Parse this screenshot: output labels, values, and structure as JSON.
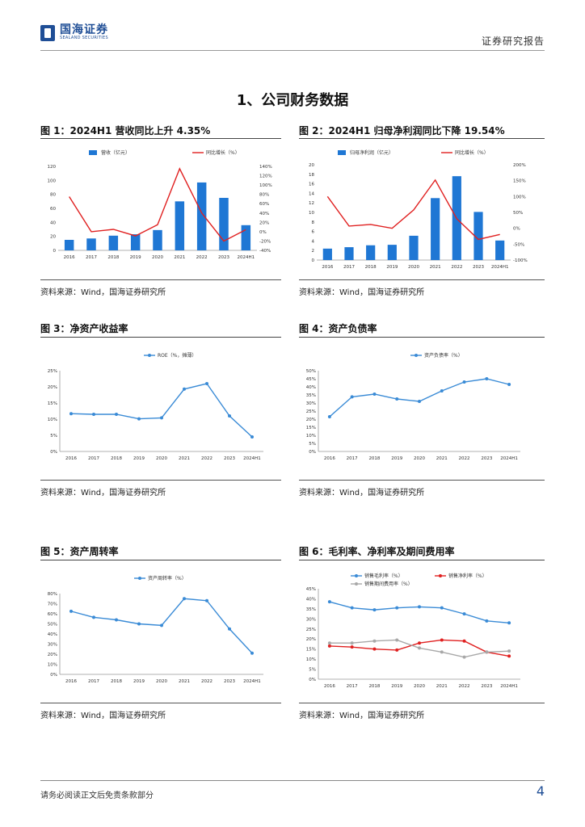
{
  "header": {
    "logo_cn": "国海证券",
    "logo_en": "SEALAND SECURITIES",
    "report_type": "证券研究报告"
  },
  "section_title": "1、公司财务数据",
  "figures": [
    {
      "title": "图 1：2024H1 营收同比上升 4.35%",
      "source": "资料来源：Wind，国海证券研究所"
    },
    {
      "title": "图 2：2024H1 归母净利润同比下降 19.54%",
      "source": "资料来源：Wind，国海证券研究所"
    },
    {
      "title": "图 3：净资产收益率",
      "source": "资料来源：Wind，国海证券研究所"
    },
    {
      "title": "图 4：资产负债率",
      "source": "资料来源：Wind，国海证券研究所"
    },
    {
      "title": "图 5：资产周转率",
      "source": "资料来源：Wind，国海证券研究所"
    },
    {
      "title": "图 6：毛利率、净利率及期间费用率",
      "source": "资料来源：Wind，国海证券研究所"
    }
  ],
  "footer": {
    "disclaimer": "请务必阅读正文后免责条款部分",
    "page": "4"
  },
  "chart_data": [
    {
      "type": "bar",
      "categories": [
        "2016",
        "2017",
        "2018",
        "2019",
        "2020",
        "2021",
        "2022",
        "2023",
        "2024H1"
      ],
      "series": [
        {
          "name": "营收（亿元）",
          "type": "bar",
          "axis": "left",
          "color": "#1f77d4",
          "values": [
            15,
            17,
            21,
            23,
            29,
            70,
            97,
            75,
            36
          ]
        },
        {
          "name": "同比增长（%）",
          "type": "line",
          "axis": "right",
          "color": "#e02020",
          "values": [
            75,
            0,
            5,
            -9,
            15,
            135,
            40,
            -20,
            4.35
          ]
        }
      ],
      "left_ticks": [
        "0",
        "20",
        "40",
        "60",
        "80",
        "100",
        "120"
      ],
      "right_ticks": [
        "-40%",
        "-20%",
        "0%",
        "20%",
        "40%",
        "60%",
        "80%",
        "100%",
        "120%",
        "140%"
      ],
      "ylim": [
        0,
        120
      ],
      "y2lim": [
        -40,
        140
      ]
    },
    {
      "type": "bar",
      "categories": [
        "2016",
        "2017",
        "2018",
        "2019",
        "2020",
        "2021",
        "2022",
        "2023",
        "2024H1"
      ],
      "series": [
        {
          "name": "归母净利润（亿元）",
          "type": "bar",
          "axis": "left",
          "color": "#1f77d4",
          "values": [
            2.4,
            2.7,
            3.1,
            3.2,
            5.1,
            13,
            17.6,
            10.1,
            4.1
          ]
        },
        {
          "name": "同比增长（%）",
          "type": "line",
          "axis": "right",
          "color": "#e02020",
          "values": [
            100,
            7,
            12,
            0,
            58,
            152,
            30,
            -35,
            -19.54
          ]
        }
      ],
      "left_ticks": [
        "0",
        "2",
        "4",
        "6",
        "8",
        "10",
        "12",
        "14",
        "16",
        "18",
        "20"
      ],
      "right_ticks": [
        "-100%",
        "-50%",
        "0%",
        "50%",
        "100%",
        "150%",
        "200%"
      ],
      "ylim": [
        0,
        20
      ],
      "y2lim": [
        -100,
        200
      ]
    },
    {
      "type": "line",
      "categories": [
        "2016",
        "2017",
        "2018",
        "2019",
        "2020",
        "2021",
        "2022",
        "2023",
        "2024H1"
      ],
      "series": [
        {
          "name": "ROE（%，摊薄）",
          "color": "#3a8bd6",
          "values": [
            11.7,
            11.5,
            11.5,
            10.1,
            10.4,
            19.3,
            21,
            11,
            4.5
          ]
        }
      ],
      "y_ticks": [
        "0%",
        "5%",
        "10%",
        "15%",
        "20%",
        "25%"
      ],
      "ylim": [
        0,
        25
      ]
    },
    {
      "type": "line",
      "categories": [
        "2016",
        "2017",
        "2018",
        "2019",
        "2020",
        "2021",
        "2022",
        "2023",
        "2024H1"
      ],
      "series": [
        {
          "name": "资产负债率（%）",
          "color": "#3a8bd6",
          "values": [
            21.5,
            33.8,
            35.5,
            32.5,
            31,
            37.5,
            43,
            45,
            41.5
          ]
        }
      ],
      "y_ticks": [
        "0%",
        "5%",
        "10%",
        "15%",
        "20%",
        "25%",
        "30%",
        "35%",
        "40%",
        "45%",
        "50%"
      ],
      "ylim": [
        0,
        50
      ]
    },
    {
      "type": "line",
      "categories": [
        "2016",
        "2017",
        "2018",
        "2019",
        "2020",
        "2021",
        "2022",
        "2023",
        "2024H1"
      ],
      "series": [
        {
          "name": "资产周转率（%）",
          "color": "#3a8bd6",
          "values": [
            62.5,
            56.5,
            54,
            50,
            48.5,
            75,
            73,
            45,
            21
          ]
        }
      ],
      "y_ticks": [
        "0%",
        "10%",
        "20%",
        "30%",
        "40%",
        "50%",
        "60%",
        "70%",
        "80%"
      ],
      "ylim": [
        0,
        80
      ]
    },
    {
      "type": "line",
      "categories": [
        "2016",
        "2017",
        "2018",
        "2019",
        "2020",
        "2021",
        "2022",
        "2023",
        "2024H1"
      ],
      "series": [
        {
          "name": "销售毛利率（%）",
          "color": "#3a8bd6",
          "values": [
            38.5,
            35.5,
            34.5,
            35.5,
            36,
            35.5,
            32.5,
            29,
            28
          ]
        },
        {
          "name": "销售净利率（%）",
          "color": "#e02020",
          "values": [
            16.5,
            16,
            15,
            14.5,
            18,
            19.5,
            19,
            13.5,
            11.5
          ]
        },
        {
          "name": "销售期间费用率（%）",
          "color": "#a8a8a8",
          "values": [
            18,
            18,
            19,
            19.5,
            15.5,
            13.5,
            11,
            13.5,
            14
          ]
        }
      ],
      "y_ticks": [
        "0%",
        "5%",
        "10%",
        "15%",
        "20%",
        "25%",
        "30%",
        "35%",
        "40%",
        "45%"
      ],
      "ylim": [
        0,
        45
      ]
    }
  ]
}
